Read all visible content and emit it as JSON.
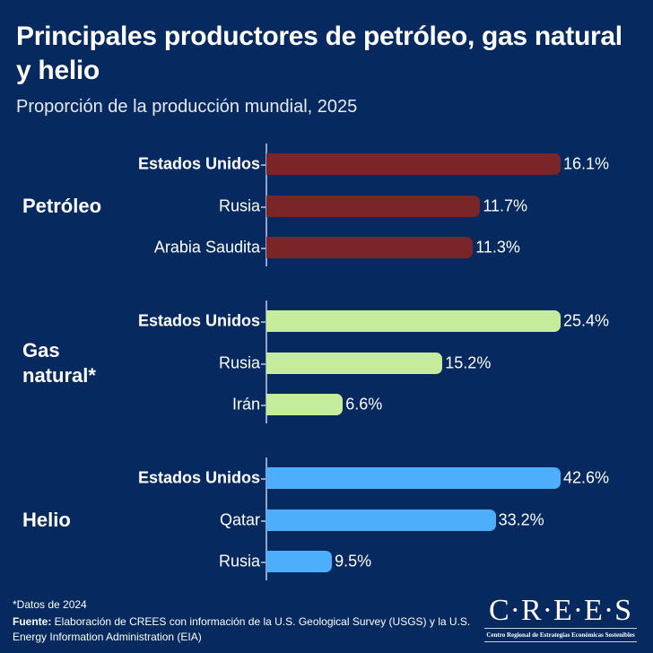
{
  "chart_data": {
    "type": "bar",
    "orientation": "horizontal",
    "title": "Principales productores de petróleo, gas natural y helio",
    "subtitle": "Proporción de la producción mundial, 2025",
    "unit": "%",
    "groups": [
      {
        "name": "Petróleo",
        "color": "#7a2628",
        "categories": [
          "Estados Unidos",
          "Rusia",
          "Arabia Saudita"
        ],
        "values": [
          16.1,
          11.7,
          11.3
        ],
        "labels": [
          "16.1%",
          "11.7%",
          "11.3%"
        ]
      },
      {
        "name": "Gas natural*",
        "color": "#c4ec9a",
        "categories": [
          "Estados Unidos",
          "Rusia",
          "Irán"
        ],
        "values": [
          25.4,
          15.2,
          6.6
        ],
        "labels": [
          "25.4%",
          "15.2%",
          "6.6%"
        ]
      },
      {
        "name": "Helio",
        "color": "#4daefc",
        "categories": [
          "Estados Unidos",
          "Qatar",
          "Rusia"
        ],
        "values": [
          42.6,
          33.2,
          9.5
        ],
        "labels": [
          "42.6%",
          "33.2%",
          "9.5%"
        ]
      }
    ],
    "grid": false
  },
  "footer": {
    "note": "*Datos de 2024",
    "source_label": "Fuente:",
    "source_text": " Elaboración de CREES con información de la U.S. Geological Survey (USGS) y la U.S. Energy Information Administration (EIA)"
  },
  "logo": {
    "main": "C·R·E·E·S",
    "sub": "Centro Regional de Estrategias Económicas Sostenibles"
  }
}
